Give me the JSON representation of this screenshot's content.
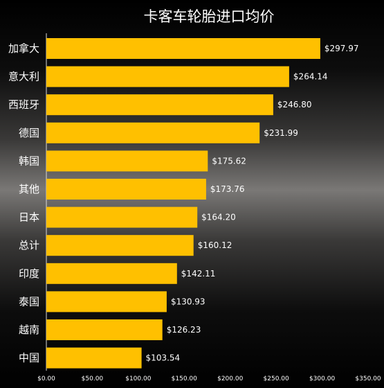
{
  "chart_data": {
    "type": "bar",
    "orientation": "horizontal",
    "title": "卡客车轮胎进口均价",
    "categories": [
      "加拿大",
      "意大利",
      "西班牙",
      "德国",
      "韩国",
      "其他",
      "日本",
      "总计",
      "印度",
      "泰国",
      "越南",
      "中国"
    ],
    "values": [
      297.97,
      264.14,
      246.8,
      231.99,
      175.62,
      173.76,
      164.2,
      160.12,
      142.11,
      130.93,
      126.23,
      103.54
    ],
    "value_labels": [
      "$297.97",
      "$264.14",
      "$246.80",
      "$231.99",
      "$175.62",
      "$173.76",
      "$164.20",
      "$160.12",
      "$142.11",
      "$130.93",
      "$126.23",
      "$103.54"
    ],
    "x_ticks": [
      "$0.00",
      "$50.00",
      "$100.00",
      "$150.00",
      "$200.00",
      "$250.00",
      "$300.00",
      "$350.00"
    ],
    "xlim": [
      0,
      350
    ],
    "grid": false,
    "legend": "none",
    "bar_color": "#ffc000",
    "text_color": "#ffffff"
  }
}
